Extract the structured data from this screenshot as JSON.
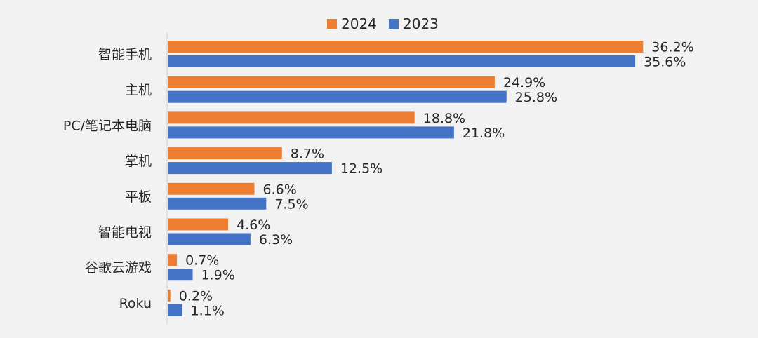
{
  "chart_data": {
    "type": "bar",
    "orientation": "horizontal",
    "title": "",
    "xlabel": "",
    "ylabel": "",
    "categories": [
      "智能手机",
      "主机",
      "PC/笔记本电脑",
      "掌机",
      "平板",
      "智能电视",
      "谷歌云游戏",
      "Roku"
    ],
    "series": [
      {
        "name": "2024",
        "color": "#ED7D31",
        "values": [
          36.2,
          24.9,
          18.8,
          8.7,
          6.6,
          4.6,
          0.7,
          0.2
        ],
        "labels": [
          "36.2%",
          "24.9%",
          "18.8%",
          "8.7%",
          "6.6%",
          "4.6%",
          "0.7%",
          "0.2%"
        ]
      },
      {
        "name": "2023",
        "color": "#4472C4",
        "values": [
          35.6,
          25.8,
          21.8,
          12.5,
          7.5,
          6.3,
          1.9,
          1.1
        ],
        "labels": [
          "35.6%",
          "25.8%",
          "21.8%",
          "12.5%",
          "7.5%",
          "6.3%",
          "1.9%",
          "1.1%"
        ]
      }
    ],
    "value_unit": "%",
    "grid": false,
    "legend_position": "top-center"
  }
}
